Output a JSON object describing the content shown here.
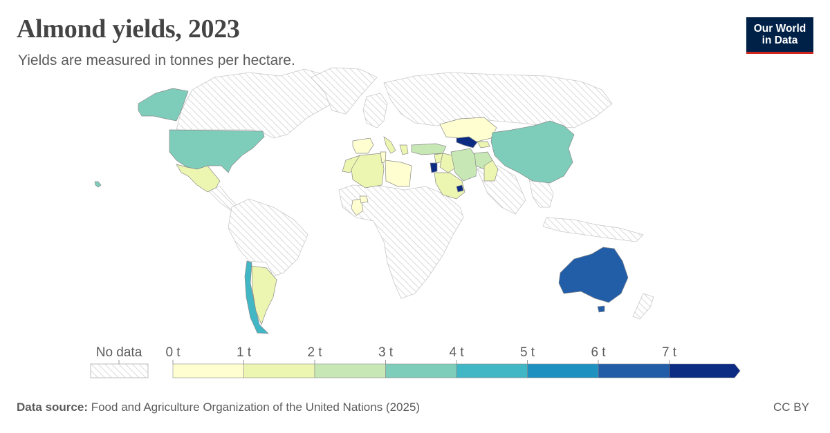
{
  "header": {
    "title": "Almond yields, 2023",
    "subtitle": "Yields are measured in tonnes per hectare."
  },
  "logo": {
    "line1": "Our World",
    "line2": "in Data"
  },
  "legend": {
    "no_data_label": "No data",
    "ticks": [
      "0 t",
      "1 t",
      "2 t",
      "3 t",
      "4 t",
      "5 t",
      "6 t",
      "7 t"
    ],
    "colors": [
      "#fefed0",
      "#ecf6b0",
      "#c7e8b5",
      "#7ecdbb",
      "#41b6c4",
      "#1d91c0",
      "#225ea8",
      "#0c2c84"
    ]
  },
  "map": {
    "no_data_color": "#dddddd",
    "regions": [
      {
        "name": "United States",
        "bin": 3
      },
      {
        "name": "Alaska",
        "bin": 3
      },
      {
        "name": "Hawaii",
        "bin": 3
      },
      {
        "name": "Mexico",
        "bin": 1
      },
      {
        "name": "Chile",
        "bin": 5
      },
      {
        "name": "Argentina",
        "bin": 1
      },
      {
        "name": "Spain",
        "bin": 0
      },
      {
        "name": "Portugal",
        "bin": 0
      },
      {
        "name": "Italy",
        "bin": 1
      },
      {
        "name": "Greece",
        "bin": 1
      },
      {
        "name": "Morocco",
        "bin": 1
      },
      {
        "name": "Algeria",
        "bin": 1
      },
      {
        "name": "Tunisia",
        "bin": 0
      },
      {
        "name": "Libya",
        "bin": 0
      },
      {
        "name": "Turkey",
        "bin": 2
      },
      {
        "name": "Syria",
        "bin": 1
      },
      {
        "name": "Jordan",
        "bin": 7
      },
      {
        "name": "Iran",
        "bin": 2
      },
      {
        "name": "Iraq",
        "bin": 1
      },
      {
        "name": "Saudi Arabia",
        "bin": 1
      },
      {
        "name": "United Arab Emirates",
        "bin": 7
      },
      {
        "name": "Afghanistan",
        "bin": 2
      },
      {
        "name": "Pakistan",
        "bin": 1
      },
      {
        "name": "Kazakhstan",
        "bin": 0
      },
      {
        "name": "Kyrgyzstan",
        "bin": 1
      },
      {
        "name": "Uzbekistan",
        "bin": 7
      },
      {
        "name": "China",
        "bin": 3
      },
      {
        "name": "Australia",
        "bin": 6
      },
      {
        "name": "Tasmania",
        "bin": 6
      },
      {
        "name": "Mali",
        "bin": 0
      },
      {
        "name": "Burkina Faso",
        "bin": 0
      }
    ]
  },
  "footer": {
    "source_label": "Data source:",
    "source_text": "Food and Agriculture Organization of the United Nations (2025)",
    "license": "CC BY"
  }
}
